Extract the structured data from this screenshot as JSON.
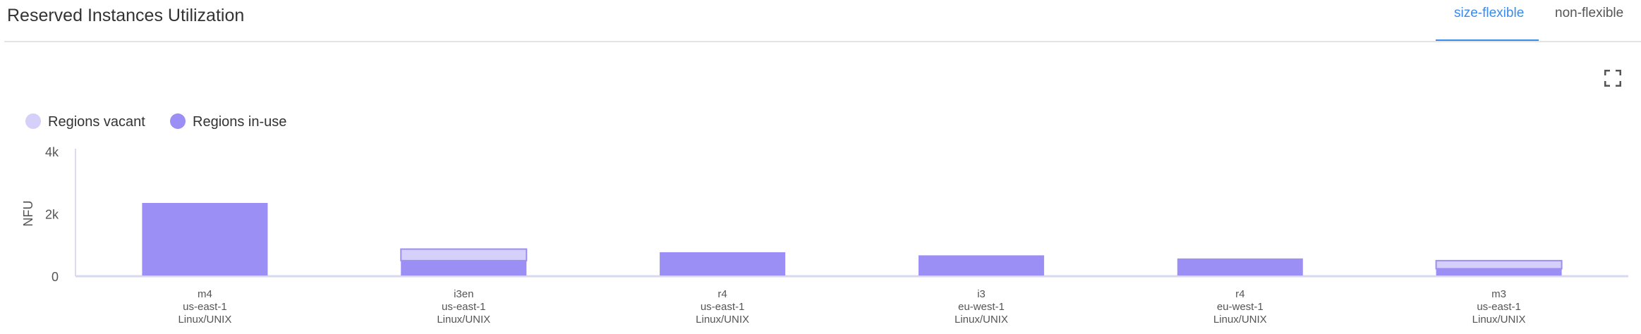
{
  "header": {
    "title": "Reserved Instances Utilization",
    "tabs": [
      {
        "label": "size-flexible",
        "active": true
      },
      {
        "label": "non-flexible",
        "active": false
      }
    ],
    "fullscreen_icon": "fullscreen-icon"
  },
  "colors": {
    "in_use": "#9b8ef4",
    "vacant": "#d5d0f9",
    "accent": "#3b8beb"
  },
  "chart_data": {
    "type": "bar",
    "stacked": true,
    "ylabel": "NFU",
    "ylim": [
      0,
      4000
    ],
    "yticks": [
      {
        "value": 0,
        "label": "0"
      },
      {
        "value": 2000,
        "label": "2k"
      },
      {
        "value": 4000,
        "label": "4k"
      }
    ],
    "legend_placement": "top-left",
    "categories": [
      [
        "m4",
        "us-east-1",
        "Linux/UNIX"
      ],
      [
        "i3en",
        "us-east-1",
        "Linux/UNIX"
      ],
      [
        "r4",
        "us-east-1",
        "Linux/UNIX"
      ],
      [
        "i3",
        "eu-west-1",
        "Linux/UNIX"
      ],
      [
        "r4",
        "eu-west-1",
        "Linux/UNIX"
      ],
      [
        "m3",
        "us-east-1",
        "Linux/UNIX"
      ]
    ],
    "series": [
      {
        "name": "Regions in-use",
        "values": [
          2350,
          500,
          770,
          670,
          570,
          240
        ]
      },
      {
        "name": "Regions vacant",
        "values": [
          0,
          370,
          0,
          0,
          0,
          260
        ]
      }
    ],
    "legend": [
      "Regions vacant",
      "Regions in-use"
    ]
  }
}
